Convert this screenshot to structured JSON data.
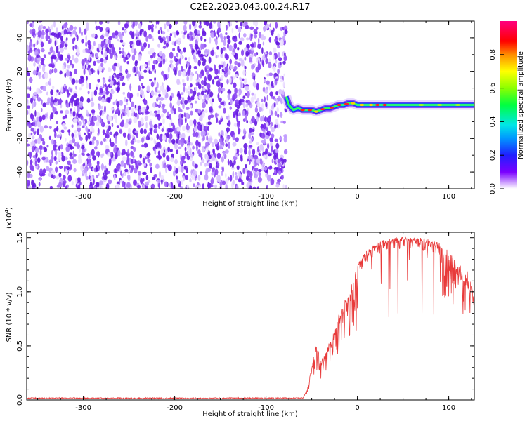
{
  "title": "C2E2.2023.043.00.24.R17",
  "chart_data": [
    {
      "type": "heatmap",
      "xlabel": "Height of straight line (km)",
      "ylabel": "Frequency (Hz)",
      "xlim": [
        -362,
        128
      ],
      "ylim": [
        -50,
        50
      ],
      "x_ticks": [
        "-300",
        "-200",
        "-100",
        "0",
        "100"
      ],
      "y_ticks": [
        "-40",
        "-20",
        "0",
        "20",
        "40"
      ],
      "noise_region_x": [
        -362,
        -78
      ],
      "ridge": {
        "x": [
          -78,
          -75,
          -72,
          -70,
          -65,
          -60,
          -55,
          -50,
          -45,
          -40,
          -35,
          -30,
          -25,
          -20,
          -15,
          -10,
          -5,
          0,
          10,
          20,
          40,
          60,
          80,
          100,
          128
        ],
        "y": [
          5,
          0,
          -2,
          -3,
          -2,
          -3,
          -3,
          -3,
          -4,
          -3,
          -2,
          -2,
          -1,
          0,
          0,
          1,
          1,
          0,
          0,
          0,
          0,
          0,
          0,
          0,
          0
        ]
      },
      "colorbar": {
        "label": "Normalized spectral amplitude",
        "ticks": [
          "0.0",
          "0.2",
          "0.4",
          "0.6",
          "0.8"
        ],
        "range": [
          0,
          1
        ]
      }
    },
    {
      "type": "line",
      "xlabel": "Height of straight line (km)",
      "ylabel": "SNR (10 * v/v)",
      "y_multiplier": "(x10",
      "y_multiplier_exp": "4",
      "y_multiplier_close": ")",
      "xlim": [
        -362,
        128
      ],
      "ylim": [
        0,
        1.55
      ],
      "x_ticks": [
        "-300",
        "-200",
        "-100",
        "0",
        "100"
      ],
      "y_ticks": [
        "0.0",
        "0.5",
        "1.0",
        "1.5"
      ],
      "color": "#e83a3a",
      "envelope": {
        "x": [
          -362,
          -60,
          -55,
          -50,
          -45,
          -40,
          -35,
          -30,
          -25,
          -20,
          -15,
          -10,
          -5,
          0,
          10,
          20,
          30,
          40,
          50,
          60,
          70,
          80,
          90,
          100,
          110,
          120,
          128
        ],
        "y": [
          0.01,
          0.01,
          0.1,
          0.3,
          0.55,
          0.35,
          0.45,
          0.55,
          0.65,
          0.8,
          0.9,
          1.0,
          1.15,
          1.25,
          1.38,
          1.45,
          1.48,
          1.5,
          1.51,
          1.5,
          1.5,
          1.48,
          1.45,
          1.38,
          1.28,
          1.15,
          1.05
        ]
      }
    }
  ]
}
